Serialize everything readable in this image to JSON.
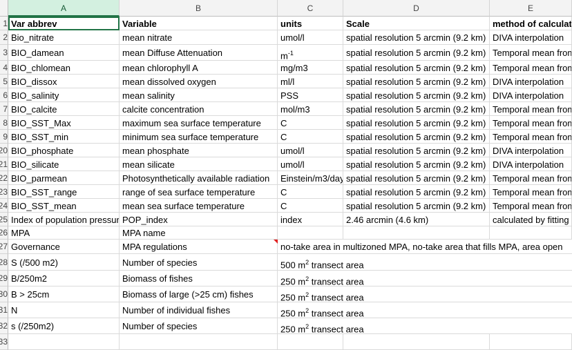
{
  "columns": [
    "A",
    "B",
    "C",
    "D",
    "E"
  ],
  "rows": [
    {
      "n": "1",
      "cells": [
        "Var abbrev",
        "Variable",
        "units",
        "Scale",
        "method of calculation"
      ],
      "bold": true
    },
    {
      "n": "2",
      "cells": [
        "Bio_nitrate",
        "mean nitrate",
        "umol/l",
        "spatial resolution 5 arcmin (9.2 km)",
        "DIVA interpolation"
      ]
    },
    {
      "n": "3",
      "cells": [
        "BIO_damean",
        "mean Diffuse Attenuation",
        "m-1",
        "spatial resolution 5 arcmin (9.2 km)",
        "Temporal mean from"
      ]
    },
    {
      "n": "4",
      "cells": [
        "BIO_chlomean",
        "mean  chlorophyll A",
        "mg/m3",
        "spatial resolution 5 arcmin (9.2 km)",
        "Temporal mean from"
      ]
    },
    {
      "n": "5",
      "cells": [
        "BIO_dissox",
        "mean dissolved oxygen",
        "ml/l",
        "spatial resolution 5 arcmin (9.2 km)",
        "DIVA interpolation"
      ]
    },
    {
      "n": "6",
      "cells": [
        "BIO_salinity",
        "mean salinity",
        "PSS",
        "spatial resolution 5 arcmin (9.2 km)",
        "DIVA interpolation"
      ]
    },
    {
      "n": "7",
      "cells": [
        "BIO_calcite",
        "calcite concentration",
        "mol/m3",
        "spatial resolution 5 arcmin (9.2 km)",
        "Temporal mean from"
      ]
    },
    {
      "n": "8",
      "cells": [
        "BIO_SST_Max",
        "maximum sea surface temperature",
        "C",
        "spatial resolution 5 arcmin (9.2 km)",
        "Temporal mean from"
      ]
    },
    {
      "n": "9",
      "cells": [
        "BIO_SST_min",
        "minimum sea surface temperature",
        "C",
        "spatial resolution 5 arcmin (9.2 km)",
        "Temporal mean from"
      ]
    },
    {
      "n": "20",
      "cells": [
        "BIO_phosphate",
        "mean phosphate",
        "umol/l",
        "spatial resolution 5 arcmin (9.2 km)",
        "DIVA interpolation"
      ]
    },
    {
      "n": "21",
      "cells": [
        "BIO_silicate",
        "mean silicate",
        "umol/l",
        "spatial resolution 5 arcmin (9.2 km)",
        "DIVA interpolation"
      ]
    },
    {
      "n": "22",
      "cells": [
        "BIO_parmean",
        "Photosynthetically available radiation",
        "Einstein/m3/day",
        "spatial resolution 5 arcmin (9.2 km)",
        "Temporal mean from"
      ]
    },
    {
      "n": "23",
      "cells": [
        "BIO_SST_range",
        "range of sea surface temperature",
        "C",
        "spatial resolution 5 arcmin (9.2 km)",
        "Temporal mean from"
      ]
    },
    {
      "n": "24",
      "cells": [
        "BIO_SST_mean",
        "mean sea surface temperature",
        "C",
        "spatial resolution 5 arcmin (9.2 km)",
        "Temporal mean from"
      ]
    },
    {
      "n": "25",
      "cells": [
        "Index of population pressure",
        "POP_index",
        "index",
        "2.46 arcmin (4.6 km)",
        "calculated by fitting"
      ]
    },
    {
      "n": "26",
      "cells": [
        "MPA",
        "MPA name",
        "",
        "",
        ""
      ]
    },
    {
      "n": "27",
      "cells": [
        "Governance",
        "MPA regulations",
        "no-take area in multizoned MPA, no-take area that fills MPA, area open",
        "",
        ""
      ],
      "overflow": 2,
      "note": true
    },
    {
      "n": "28",
      "cells": [
        "S (/500 m2)",
        "Number of species",
        "500 m2 transect area",
        "",
        ""
      ],
      "overflow": 2
    },
    {
      "n": "29",
      "cells": [
        "B/250m2",
        "Biomass of fishes",
        "250 m2 transect area",
        "",
        ""
      ],
      "overflow": 2
    },
    {
      "n": "30",
      "cells": [
        "B > 25cm",
        "Biomass of large (>25 cm) fishes",
        "250 m2 transect area",
        "",
        ""
      ],
      "overflow": 2
    },
    {
      "n": "31",
      "cells": [
        "N",
        "Number of individual fishes",
        "250 m2 transect area",
        "",
        ""
      ],
      "overflow": 2
    },
    {
      "n": "32",
      "cells": [
        "s (/250m2)",
        "Number of species",
        "250 m2 transect area",
        "",
        ""
      ],
      "overflow": 2
    },
    {
      "n": "33",
      "cells": [
        "",
        "",
        "",
        "",
        ""
      ]
    }
  ],
  "colors": {
    "header_bg": "#f3f3f3",
    "selection": "#217346",
    "grid": "#dadada",
    "note": "#e02020"
  }
}
